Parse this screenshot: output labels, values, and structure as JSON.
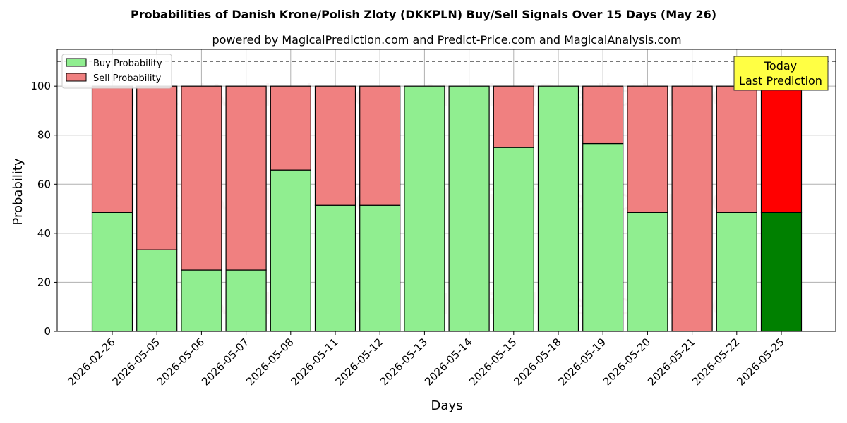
{
  "chart_data": {
    "type": "bar",
    "stacked": true,
    "title": "Probabilities of Danish Krone/Polish Zloty (DKKPLN) Buy/Sell Signals Over 15 Days (May 26)",
    "subtitle": "powered by MagicalPrediction.com and Predict-Price.com and MagicalAnalysis.com",
    "xlabel": "Days",
    "ylabel": "Probability",
    "ylim": [
      0,
      115
    ],
    "yticks": [
      0,
      20,
      40,
      60,
      80,
      100
    ],
    "grid": true,
    "legend_position": "top-left",
    "reference_line": 110,
    "categories": [
      "2026-02-26",
      "2026-05-05",
      "2026-05-06",
      "2026-05-07",
      "2026-05-08",
      "2026-05-11",
      "2026-05-12",
      "2026-05-13",
      "2026-05-14",
      "2026-05-15",
      "2026-05-18",
      "2026-05-19",
      "2026-05-20",
      "2026-05-21",
      "2026-05-22",
      "2026-05-25"
    ],
    "series": [
      {
        "name": "Buy Probability",
        "color": "#90ee90",
        "highlight_color": "#008000",
        "values": [
          48.5,
          33.3,
          25,
          25,
          65.8,
          51.4,
          51.4,
          100,
          100,
          75,
          100,
          76.6,
          48.5,
          0,
          48.5,
          48.5
        ]
      },
      {
        "name": "Sell Probability",
        "color": "#f08080",
        "highlight_color": "#ff0000",
        "values": [
          51.5,
          66.7,
          75,
          75,
          34.2,
          48.6,
          48.6,
          0,
          0,
          25,
          0,
          23.4,
          51.5,
          100,
          51.5,
          51.5
        ]
      }
    ],
    "highlight_index": 15,
    "annotation": {
      "text_line1": "Today",
      "text_line2": "Last Prediction",
      "background": "#ffff44"
    },
    "watermarks": [
      "MagicalAnalysis.com",
      "MagicalPrediction.com"
    ]
  }
}
